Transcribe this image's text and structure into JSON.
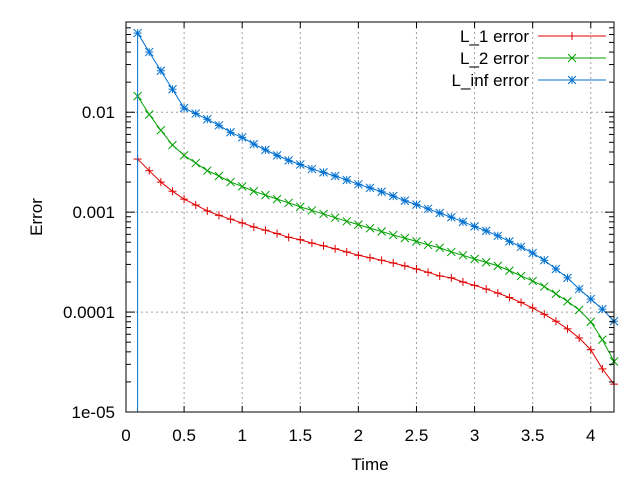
{
  "chart_data": {
    "type": "line",
    "title": "",
    "xlabel": "Time",
    "ylabel": "Error",
    "xlim": [
      0,
      4.2
    ],
    "ylim": [
      1e-05,
      0.08
    ],
    "yscale": "log",
    "grid": true,
    "legend_position": "top-right",
    "x_ticks": [
      {
        "value": 0,
        "label": "0"
      },
      {
        "value": 0.5,
        "label": "0.5"
      },
      {
        "value": 1,
        "label": "1"
      },
      {
        "value": 1.5,
        "label": "1.5"
      },
      {
        "value": 2,
        "label": "2"
      },
      {
        "value": 2.5,
        "label": "2.5"
      },
      {
        "value": 3,
        "label": "3"
      },
      {
        "value": 3.5,
        "label": "3.5"
      },
      {
        "value": 4,
        "label": "4"
      }
    ],
    "y_ticks": [
      {
        "value": 1e-05,
        "label": "1e-05"
      },
      {
        "value": 0.0001,
        "label": "0.0001"
      },
      {
        "value": 0.001,
        "label": "0.001"
      },
      {
        "value": 0.01,
        "label": "0.01"
      }
    ],
    "x": [
      0.1,
      0.2,
      0.3,
      0.4,
      0.5,
      0.6,
      0.7,
      0.8,
      0.9,
      1.0,
      1.1,
      1.2,
      1.3,
      1.4,
      1.5,
      1.6,
      1.7,
      1.8,
      1.9,
      2.0,
      2.1,
      2.2,
      2.3,
      2.4,
      2.5,
      2.6,
      2.7,
      2.8,
      2.9,
      3.0,
      3.1,
      3.2,
      3.3,
      3.4,
      3.5,
      3.6,
      3.7,
      3.8,
      3.9,
      4.0,
      4.1,
      4.2
    ],
    "series": [
      {
        "name": "L_1 error",
        "color": "#e00000",
        "marker": "plus",
        "values": [
          0.0034,
          0.0026,
          0.002,
          0.00162,
          0.00135,
          0.00118,
          0.00103,
          0.00093,
          0.00085,
          0.00078,
          0.00071,
          0.00066,
          0.00061,
          0.00056,
          0.00053,
          0.00049,
          0.00046,
          0.00043,
          0.0004,
          0.00037,
          0.00035,
          0.00033,
          0.00031,
          0.00029,
          0.00027,
          0.00025,
          0.00023,
          0.00022,
          0.0002,
          0.000185,
          0.00017,
          0.000155,
          0.00014,
          0.000125,
          0.00011,
          9.5e-05,
          8.1e-05,
          6.8e-05,
          5.5e-05,
          4.2e-05,
          2.7e-05,
          1.9e-05
        ]
      },
      {
        "name": "L_2 error",
        "color": "#00a000",
        "marker": "cross",
        "values": [
          0.0145,
          0.0095,
          0.0066,
          0.0047,
          0.0037,
          0.0031,
          0.0026,
          0.0023,
          0.002,
          0.00181,
          0.00162,
          0.00148,
          0.00135,
          0.00124,
          0.00113,
          0.00104,
          0.00096,
          0.00088,
          0.00081,
          0.00075,
          0.00069,
          0.00064,
          0.00059,
          0.00055,
          0.00051,
          0.00047,
          0.00044,
          0.0004,
          0.00037,
          0.00034,
          0.000315,
          0.00029,
          0.00026,
          0.00023,
          0.000205,
          0.00018,
          0.000152,
          0.000128,
          0.000105,
          8e-05,
          5.3e-05,
          3.2e-05
        ]
      },
      {
        "name": "L_inf error",
        "color": "#0070d0",
        "marker": "star",
        "values": [
          0.062,
          0.04,
          0.026,
          0.017,
          0.011,
          0.0097,
          0.0085,
          0.0074,
          0.0063,
          0.0056,
          0.0048,
          0.0042,
          0.0037,
          0.0033,
          0.003,
          0.0027,
          0.0025,
          0.0023,
          0.0021,
          0.0019,
          0.00175,
          0.0016,
          0.00145,
          0.0013,
          0.00119,
          0.00108,
          0.00098,
          0.00089,
          0.0008,
          0.00072,
          0.00065,
          0.00058,
          0.00051,
          0.00045,
          0.00039,
          0.00033,
          0.00027,
          0.00022,
          0.00017,
          0.000135,
          0.000107,
          8.1e-05
        ]
      }
    ]
  }
}
